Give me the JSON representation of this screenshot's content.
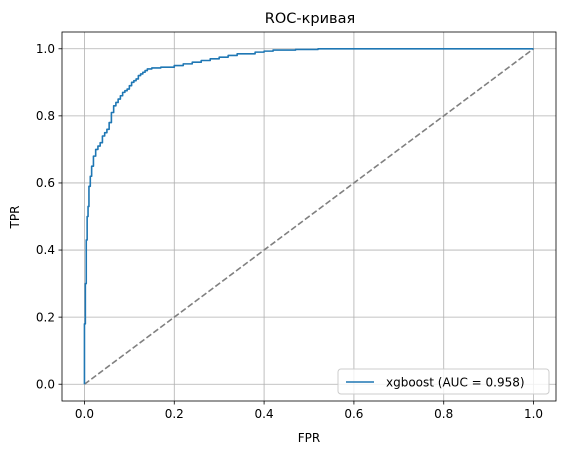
{
  "chart_data": {
    "type": "line",
    "title": "ROC-кривая",
    "xlabel": "FPR",
    "ylabel": "TPR",
    "xlim": [
      -0.05,
      1.05
    ],
    "ylim": [
      -0.05,
      1.05
    ],
    "grid": true,
    "x_ticks": [
      0.0,
      0.2,
      0.4,
      0.6,
      0.8,
      1.0
    ],
    "y_ticks": [
      0.0,
      0.2,
      0.4,
      0.6,
      0.8,
      1.0
    ],
    "x_tick_labels": [
      "0.0",
      "0.2",
      "0.4",
      "0.6",
      "0.8",
      "1.0"
    ],
    "y_tick_labels": [
      "0.0",
      "0.2",
      "0.4",
      "0.6",
      "0.8",
      "1.0"
    ],
    "legend_position": "lower right",
    "series": [
      {
        "name": "xgboost (AUC = 0.958)",
        "color": "#1f77b4",
        "style": "solid",
        "x": [
          0.0,
          0.0,
          0.002,
          0.002,
          0.004,
          0.004,
          0.006,
          0.006,
          0.008,
          0.008,
          0.01,
          0.01,
          0.013,
          0.013,
          0.016,
          0.016,
          0.02,
          0.02,
          0.025,
          0.025,
          0.03,
          0.03,
          0.035,
          0.035,
          0.04,
          0.04,
          0.045,
          0.045,
          0.05,
          0.05,
          0.055,
          0.055,
          0.06,
          0.06,
          0.065,
          0.065,
          0.07,
          0.07,
          0.075,
          0.075,
          0.08,
          0.08,
          0.085,
          0.085,
          0.09,
          0.09,
          0.095,
          0.095,
          0.1,
          0.1,
          0.105,
          0.105,
          0.11,
          0.11,
          0.115,
          0.115,
          0.12,
          0.12,
          0.125,
          0.125,
          0.13,
          0.13,
          0.135,
          0.135,
          0.14,
          0.14,
          0.15,
          0.15,
          0.17,
          0.17,
          0.2,
          0.2,
          0.22,
          0.22,
          0.24,
          0.24,
          0.26,
          0.26,
          0.28,
          0.28,
          0.3,
          0.3,
          0.32,
          0.32,
          0.34,
          0.34,
          0.38,
          0.38,
          0.4,
          0.4,
          0.42,
          0.42,
          0.47,
          0.47,
          0.52,
          0.52,
          1.0
        ],
        "y": [
          0.0,
          0.18,
          0.18,
          0.3,
          0.3,
          0.43,
          0.43,
          0.5,
          0.5,
          0.53,
          0.53,
          0.59,
          0.59,
          0.62,
          0.62,
          0.65,
          0.65,
          0.68,
          0.68,
          0.7,
          0.7,
          0.71,
          0.71,
          0.72,
          0.72,
          0.74,
          0.74,
          0.75,
          0.75,
          0.76,
          0.76,
          0.78,
          0.78,
          0.81,
          0.81,
          0.83,
          0.83,
          0.84,
          0.84,
          0.85,
          0.85,
          0.86,
          0.86,
          0.87,
          0.87,
          0.875,
          0.875,
          0.88,
          0.88,
          0.89,
          0.89,
          0.9,
          0.9,
          0.905,
          0.905,
          0.91,
          0.91,
          0.92,
          0.92,
          0.925,
          0.925,
          0.93,
          0.93,
          0.935,
          0.935,
          0.94,
          0.94,
          0.943,
          0.943,
          0.945,
          0.945,
          0.95,
          0.95,
          0.955,
          0.955,
          0.96,
          0.96,
          0.965,
          0.965,
          0.97,
          0.97,
          0.975,
          0.975,
          0.98,
          0.98,
          0.985,
          0.985,
          0.99,
          0.99,
          0.993,
          0.993,
          0.996,
          0.996,
          0.998,
          0.998,
          1.0,
          1.0
        ]
      },
      {
        "name": "",
        "color": "#808080",
        "style": "dashed",
        "x": [
          0.0,
          1.0
        ],
        "y": [
          0.0,
          1.0
        ]
      }
    ]
  }
}
